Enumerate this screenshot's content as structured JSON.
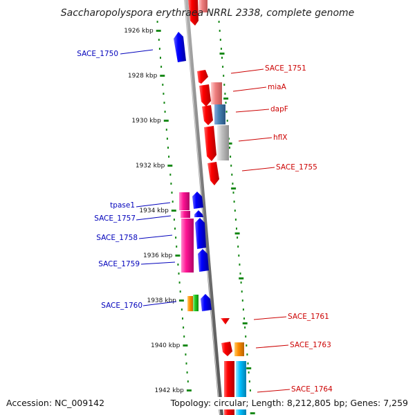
{
  "title": "Saccharopolyspora erythraea NRRL 2338, complete genome",
  "footer": {
    "accession": "Accession: NC_009142",
    "topology": "Topology: circular; Length: 8,212,805 bp; Genes: 7,259"
  },
  "ticks": [
    {
      "label": "1926 kbp"
    },
    {
      "label": "1928 kbp"
    },
    {
      "label": "1930 kbp"
    },
    {
      "label": "1932 kbp"
    },
    {
      "label": "1934 kbp"
    },
    {
      "label": "1936 kbp"
    },
    {
      "label": "1938 kbp"
    },
    {
      "label": "1940 kbp"
    },
    {
      "label": "1942 kbp"
    }
  ],
  "labels_left": [
    {
      "text": "SACE_1750"
    },
    {
      "text": "tpase1"
    },
    {
      "text": "SACE_1757"
    },
    {
      "text": "SACE_1758"
    },
    {
      "text": "SACE_1759"
    },
    {
      "text": "SACE_1760"
    }
  ],
  "labels_right": [
    {
      "text": "SACE_1751"
    },
    {
      "text": "miaA"
    },
    {
      "text": "dapF"
    },
    {
      "text": "hflX"
    },
    {
      "text": "SACE_1755"
    },
    {
      "text": "SACE_1761"
    },
    {
      "text": "SACE_1763"
    },
    {
      "text": "SACE_1764"
    }
  ],
  "colors": {
    "forward": "#e60000",
    "reverse": "#0000dd",
    "left_label": "#0000bb",
    "right_label": "#cc0000",
    "tick_green": "#1a8a1a",
    "backbone": "#888888",
    "magenta": "#ee1199",
    "orange": "#ee8800",
    "green": "#22bb22",
    "cyan": "#11bbee",
    "pink": "#ee8888",
    "steel": "#4477aa",
    "grey": "#bbbbbb"
  }
}
